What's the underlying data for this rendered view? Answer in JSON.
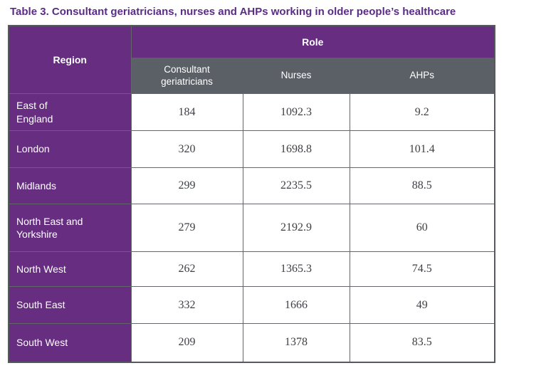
{
  "title": "Table 3. Consultant geriatricians, nurses and AHPs working in older people’s healthcare",
  "table": {
    "region_header": "Region",
    "role_header": "Role",
    "columns": [
      "Consultant\ngeriatricians",
      "Nurses",
      "AHPs"
    ],
    "rows": [
      {
        "region": "East of\nEngland",
        "values": [
          "184",
          "1092.3",
          "9.2"
        ]
      },
      {
        "region": "London",
        "values": [
          "320",
          "1698.8",
          "101.4"
        ]
      },
      {
        "region": "Midlands",
        "values": [
          "299",
          "2235.5",
          "88.5"
        ]
      },
      {
        "region": "North East and\nYorkshire",
        "values": [
          "279",
          "2192.9",
          "60"
        ]
      },
      {
        "region": "North West",
        "values": [
          "262",
          "1365.3",
          "74.5"
        ]
      },
      {
        "region": "South East",
        "values": [
          "332",
          "1666",
          "49"
        ]
      },
      {
        "region": "South West",
        "values": [
          "209",
          "1378",
          "83.5"
        ]
      }
    ]
  },
  "colors": {
    "purple": "#662d80",
    "title": "#5a2c85",
    "gray": "#5b5f66",
    "border": "#63676c",
    "outer": "#565a5f",
    "num": "#3e4045",
    "white": "#ffffff"
  }
}
